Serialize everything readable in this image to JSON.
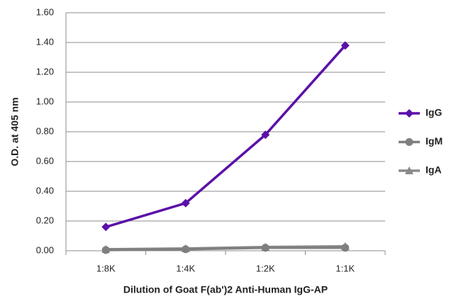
{
  "chart_data": {
    "type": "line",
    "x_label": "Dilution of Goat F(ab')2 Anti-Human IgG-AP",
    "y_label": "O.D. at 405 nm",
    "categories": [
      "1:8K",
      "1:4K",
      "1:2K",
      "1:1K"
    ],
    "series": [
      {
        "name": "IgG",
        "color": "#5b10a8",
        "marker": "diamond",
        "values": [
          0.16,
          0.32,
          0.78,
          1.38
        ]
      },
      {
        "name": "IgM",
        "color": "#7f7f7f",
        "marker": "circle",
        "values": [
          0.005,
          0.01,
          0.02,
          0.02
        ]
      },
      {
        "name": "IgA",
        "color": "#8a8a8a",
        "marker": "triangle",
        "values": [
          0.01,
          0.015,
          0.025,
          0.03
        ]
      }
    ],
    "ylim": [
      0,
      1.6
    ],
    "yticks": [
      {
        "value": 0,
        "label": "0.00"
      },
      {
        "value": 0.2,
        "label": "0.20"
      },
      {
        "value": 0.4,
        "label": "0.40"
      },
      {
        "value": 0.6,
        "label": "0.60"
      },
      {
        "value": 0.8,
        "label": "0.80"
      },
      {
        "value": 1.0,
        "label": "1.00"
      },
      {
        "value": 1.2,
        "label": "1.20"
      },
      {
        "value": 1.4,
        "label": "1.40"
      },
      {
        "value": 1.6,
        "label": "1.60"
      }
    ],
    "grid": true,
    "legend": "right"
  }
}
